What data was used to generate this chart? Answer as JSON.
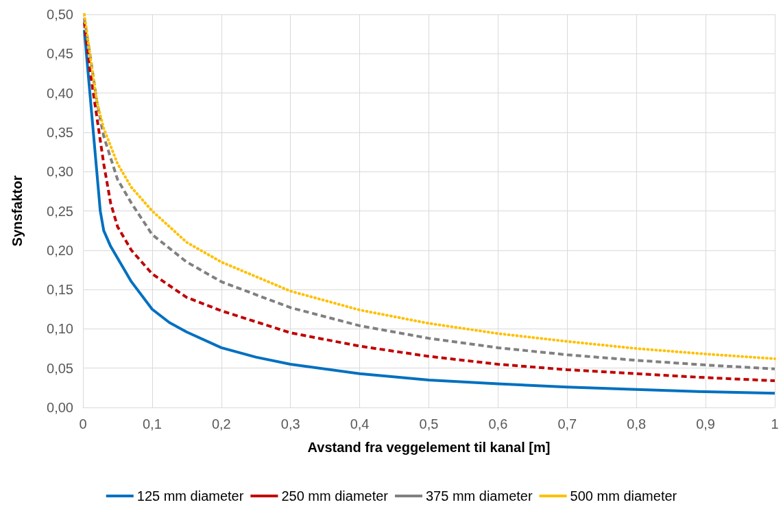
{
  "chart_data": {
    "type": "line",
    "xlabel": "Avstand fra veggelement til kanal [m]",
    "ylabel": "Synsfaktor",
    "xlim": [
      0,
      1
    ],
    "ylim": [
      0,
      0.5
    ],
    "xticks": [
      0,
      {
        "value": 0.1,
        "label": "0,1"
      },
      {
        "value": 0.2,
        "label": "0,2"
      },
      {
        "value": 0.3,
        "label": "0,3"
      },
      {
        "value": 0.4,
        "label": "0,4"
      },
      {
        "value": 0.5,
        "label": "0,5"
      },
      {
        "value": 0.6,
        "label": "0,6"
      },
      {
        "value": 0.7,
        "label": "0,7"
      },
      {
        "value": 0.8,
        "label": "0,8"
      },
      {
        "value": 0.9,
        "label": "0,9"
      },
      1
    ],
    "yticks": [
      {
        "value": 0,
        "label": "0,00"
      },
      {
        "value": 0.05,
        "label": "0,05"
      },
      {
        "value": 0.1,
        "label": "0,10"
      },
      {
        "value": 0.15,
        "label": "0,15"
      },
      {
        "value": 0.2,
        "label": "0,20"
      },
      {
        "value": 0.25,
        "label": "0,25"
      },
      {
        "value": 0.3,
        "label": "0,30"
      },
      {
        "value": 0.35,
        "label": "0,35"
      },
      {
        "value": 0.4,
        "label": "0,40"
      },
      {
        "value": 0.45,
        "label": "0,45"
      },
      {
        "value": 0.5,
        "label": "0,50"
      }
    ],
    "grid": true,
    "legend": "bottom",
    "marker": "none",
    "series": [
      {
        "name": "125 mm diameter",
        "color": "#0070c0",
        "line_style": "solid",
        "x": [
          0.002,
          0.005,
          0.01,
          0.02,
          0.025,
          0.03,
          0.04,
          0.05,
          0.07,
          0.1,
          0.125,
          0.15,
          0.2,
          0.25,
          0.3,
          0.4,
          0.5,
          0.6,
          0.7,
          0.8,
          0.9,
          1
        ],
        "values": [
          0.48,
          0.45,
          0.4,
          0.3,
          0.25,
          0.225,
          0.205,
          0.19,
          0.16,
          0.125,
          0.108,
          0.096,
          0.076,
          0.064,
          0.055,
          0.043,
          0.035,
          0.03,
          0.026,
          0.023,
          0.02,
          0.018
        ]
      },
      {
        "name": "250 mm diameter",
        "color": "#c00000",
        "line_style": "dashed",
        "x": [
          0.002,
          0.01,
          0.02,
          0.03,
          0.04,
          0.05,
          0.07,
          0.1,
          0.15,
          0.2,
          0.3,
          0.4,
          0.5,
          0.6,
          0.7,
          0.8,
          0.9,
          1
        ],
        "values": [
          0.49,
          0.43,
          0.37,
          0.31,
          0.26,
          0.23,
          0.2,
          0.17,
          0.14,
          0.123,
          0.095,
          0.078,
          0.065,
          0.055,
          0.048,
          0.043,
          0.038,
          0.034
        ]
      },
      {
        "name": "375 mm diameter",
        "color": "#808080",
        "line_style": "dashed",
        "x": [
          0.002,
          0.01,
          0.02,
          0.03,
          0.05,
          0.07,
          0.1,
          0.15,
          0.2,
          0.3,
          0.4,
          0.5,
          0.6,
          0.7,
          0.8,
          0.9,
          1
        ],
        "values": [
          0.495,
          0.45,
          0.39,
          0.345,
          0.29,
          0.26,
          0.22,
          0.185,
          0.16,
          0.127,
          0.104,
          0.088,
          0.076,
          0.067,
          0.06,
          0.054,
          0.049
        ]
      },
      {
        "name": "500 mm diameter",
        "color": "#ffc000",
        "line_style": "dotted",
        "x": [
          0.002,
          0.01,
          0.02,
          0.03,
          0.05,
          0.07,
          0.1,
          0.15,
          0.2,
          0.3,
          0.4,
          0.5,
          0.6,
          0.7,
          0.8,
          0.9,
          1
        ],
        "values": [
          0.5,
          0.45,
          0.39,
          0.355,
          0.31,
          0.28,
          0.25,
          0.21,
          0.185,
          0.148,
          0.124,
          0.107,
          0.094,
          0.084,
          0.075,
          0.068,
          0.062
        ]
      }
    ]
  }
}
